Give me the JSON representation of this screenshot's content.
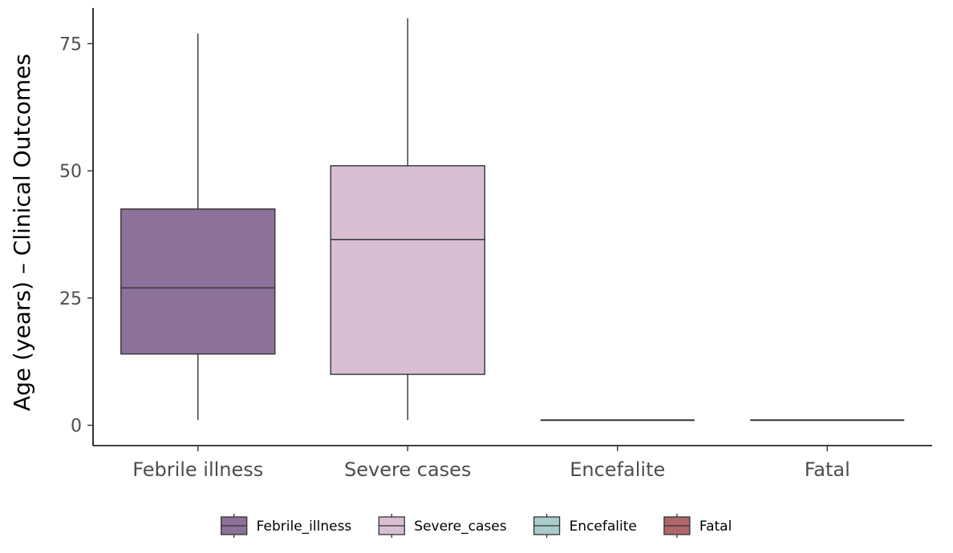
{
  "chart_data": {
    "type": "box",
    "ylabel": "Age (years) – Clinical Outcomes",
    "xlabel": "",
    "ylim": [
      -4,
      82
    ],
    "y_ticks": [
      0,
      25,
      50,
      75
    ],
    "grid": false,
    "legend_position": "bottom",
    "categories": [
      "Febrile illness",
      "Severe cases",
      "Encefalite",
      "Fatal"
    ],
    "series": [
      {
        "name": "Febrile_illness",
        "color": "#8c7199",
        "min": 1,
        "q1": 14,
        "median": 27,
        "q3": 42.5,
        "max": 77
      },
      {
        "name": "Severe_cases",
        "color": "#d8bed3",
        "min": 1,
        "q1": 10,
        "median": 36.5,
        "q3": 51,
        "max": 80
      },
      {
        "name": "Encefalite",
        "color": "#a9cbcb",
        "min": 1,
        "q1": 1,
        "median": 1,
        "q3": 1,
        "max": 1
      },
      {
        "name": "Fatal",
        "color": "#b0676b",
        "min": 1,
        "q1": 1,
        "median": 1,
        "q3": 1,
        "max": 1
      }
    ]
  }
}
